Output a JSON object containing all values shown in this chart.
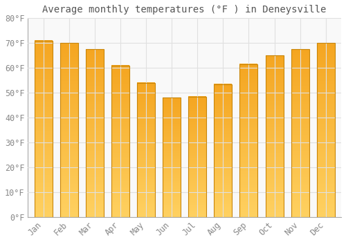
{
  "title": "Average monthly temperatures (°F ) in Deneysville",
  "months": [
    "Jan",
    "Feb",
    "Mar",
    "Apr",
    "May",
    "Jun",
    "Jul",
    "Aug",
    "Sep",
    "Oct",
    "Nov",
    "Dec"
  ],
  "values": [
    71,
    70,
    67.5,
    61,
    54,
    48,
    48.5,
    53.5,
    61.5,
    65,
    67.5,
    70
  ],
  "bar_color_top": "#F5A623",
  "bar_color_bottom": "#FFD060",
  "bar_edge_color": "#C8860A",
  "background_color": "#ffffff",
  "plot_bg_color": "#f9f9f9",
  "grid_color": "#e0e0e0",
  "text_color": "#888888",
  "title_color": "#555555",
  "ylim": [
    0,
    80
  ],
  "yticks": [
    0,
    10,
    20,
    30,
    40,
    50,
    60,
    70,
    80
  ],
  "ytick_labels": [
    "0°F",
    "10°F",
    "20°F",
    "30°F",
    "40°F",
    "50°F",
    "60°F",
    "70°F",
    "80°F"
  ],
  "title_fontsize": 10,
  "tick_fontsize": 8.5,
  "font_family": "monospace"
}
